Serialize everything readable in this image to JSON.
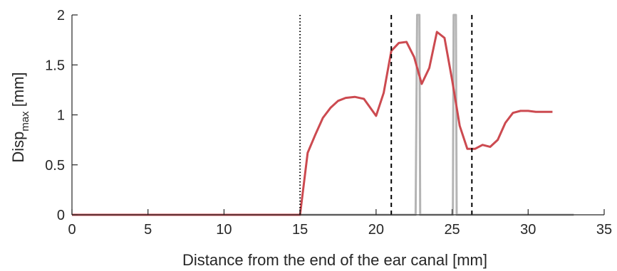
{
  "chart_data": {
    "type": "line",
    "xlabel": "Distance from the end of the ear canal [mm]",
    "ylabel": {
      "main": "Disp",
      "subscript": "max",
      "unit": " [mm]"
    },
    "xlim": [
      0,
      35
    ],
    "ylim": [
      0,
      2
    ],
    "xticks": [
      0,
      5,
      10,
      15,
      20,
      25,
      30,
      35
    ],
    "yticks": [
      0,
      0.5,
      1,
      1.5,
      2
    ],
    "xtick_labels": [
      "0",
      "5",
      "10",
      "15",
      "20",
      "25",
      "30",
      "35"
    ],
    "ytick_labels": [
      "0",
      "0.5",
      "1",
      "1.5",
      "2"
    ],
    "grid": false,
    "colors": {
      "red_series": "#cc4a50",
      "gray_series": "#b4b4b4",
      "axis": "#262626"
    },
    "series": [
      {
        "color": "#cc4a50",
        "x": [
          0,
          15,
          15.5,
          16,
          16.5,
          17,
          17.5,
          18,
          18.6,
          19.2,
          20,
          20.5,
          21,
          21.5,
          22,
          22.5,
          23,
          23.5,
          24,
          24.5,
          25,
          25.5,
          26,
          26.5,
          27,
          27.5,
          28,
          28.5,
          29,
          29.5,
          30,
          30.5,
          31,
          31.6
        ],
        "y": [
          0,
          0,
          0.62,
          0.8,
          0.97,
          1.07,
          1.14,
          1.17,
          1.18,
          1.16,
          0.99,
          1.22,
          1.64,
          1.72,
          1.73,
          1.58,
          1.31,
          1.47,
          1.83,
          1.77,
          1.35,
          0.89,
          0.66,
          0.66,
          0.7,
          0.68,
          0.75,
          0.92,
          1.02,
          1.04,
          1.04,
          1.03,
          1.03,
          1.03
        ]
      },
      {
        "color": "#b4b4b4",
        "x": [
          15,
          22.6,
          22.7,
          22.75,
          22.8,
          22.85,
          22.9,
          25.05,
          25.1,
          25.15,
          25.2,
          25.25,
          25.3,
          33
        ],
        "y": [
          0,
          0,
          2,
          2,
          2,
          2,
          0,
          0,
          2,
          2,
          2,
          2,
          0,
          0
        ]
      }
    ],
    "vertical_lines": [
      {
        "x": 15,
        "style": "dotted"
      },
      {
        "x": 21,
        "style": "dashed"
      },
      {
        "x": 26.3,
        "style": "dashed"
      }
    ]
  }
}
